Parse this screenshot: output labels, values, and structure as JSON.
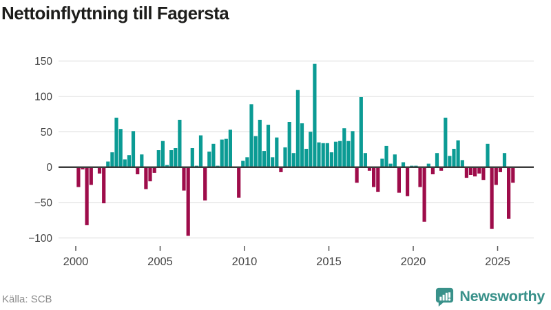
{
  "title": "Nettoinflyttning till Fagersta",
  "footer": {
    "source": "Källa: SCB",
    "brand": "Newsworthy"
  },
  "colors": {
    "positive": "#0b9b94",
    "negative": "#9e0c4a",
    "grid": "#e7e7e7",
    "axis": "#3a3a3a",
    "tick": "#555555",
    "tick_label": "#454545",
    "title": "#1d1d1b",
    "source": "#8b8b8b",
    "brand": "#39918a"
  },
  "chart_data": {
    "type": "bar",
    "title": "Nettoinflyttning till Fagersta",
    "x_unit": "quarter",
    "start": "2000-Q1",
    "end": "2025-Q4",
    "values": [
      -28,
      -3,
      -82,
      -25,
      0,
      -9,
      -51,
      8,
      21,
      70,
      54,
      11,
      17,
      51,
      -10,
      18,
      -31,
      -20,
      -8,
      24,
      37,
      3,
      24,
      27,
      67,
      -33,
      -97,
      27,
      2,
      45,
      -47,
      22,
      33,
      2,
      39,
      40,
      53,
      0,
      -43,
      9,
      14,
      89,
      44,
      67,
      23,
      60,
      14,
      42,
      -7,
      28,
      64,
      20,
      109,
      62,
      26,
      50,
      146,
      35,
      34,
      34,
      21,
      36,
      37,
      55,
      37,
      51,
      -22,
      99,
      20,
      -5,
      -28,
      -35,
      12,
      30,
      5,
      18,
      -36,
      7,
      -41,
      2,
      2,
      -28,
      -77,
      5,
      -10,
      20,
      -5,
      70,
      16,
      26,
      38,
      10,
      -15,
      -11,
      -13,
      -9,
      -18,
      33,
      -87,
      -25,
      -7,
      20,
      -73,
      -22
    ],
    "x_ticks": [
      2000,
      2005,
      2010,
      2015,
      2020,
      2025
    ],
    "x_tick_labels": [
      "2000",
      "2005",
      "2010",
      "2015",
      "2020",
      "2025"
    ],
    "y_ticks": [
      150,
      100,
      50,
      0,
      -50,
      -100
    ],
    "y_tick_labels": [
      "150",
      "100",
      "50",
      "0",
      "−50",
      "−100"
    ],
    "ylim": [
      -110,
      160
    ],
    "grid": true,
    "legend": false
  }
}
